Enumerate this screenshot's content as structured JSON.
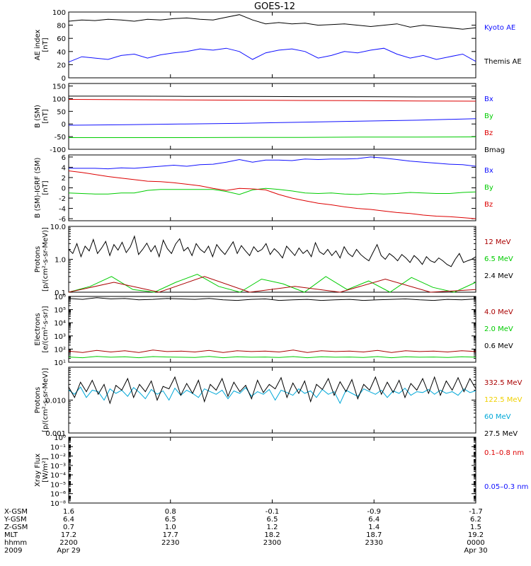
{
  "title": "GOES-12",
  "colors": {
    "black": "#000000",
    "blue": "#1010ff",
    "red": "#dd0000",
    "green": "#00cc00",
    "darkred": "#aa0000",
    "yellow": "#f0d000",
    "cyan": "#00a8d8"
  },
  "chart_data": [
    {
      "type": "line",
      "id": "ae",
      "ylabel": [
        "AE index",
        "[nT]"
      ],
      "yscale": "linear",
      "ylim": [
        0,
        100
      ],
      "yticks": [
        "0",
        "20",
        "40",
        "60",
        "80",
        "100"
      ],
      "legend": [
        {
          "label": "Kyoto AE",
          "color": "blue",
          "slot": 0
        },
        {
          "label": "Themis AE",
          "color": "black",
          "slot": 2
        }
      ],
      "series": [
        {
          "color": "black",
          "values": [
            86,
            88,
            87,
            89,
            88,
            86,
            89,
            88,
            90,
            91,
            89,
            88,
            92,
            96,
            88,
            82,
            84,
            82,
            83,
            80,
            81,
            82,
            80,
            78,
            80,
            82,
            77,
            80,
            78,
            76,
            74,
            76
          ]
        },
        {
          "color": "blue",
          "values": [
            24,
            32,
            30,
            28,
            34,
            36,
            30,
            35,
            38,
            40,
            44,
            42,
            45,
            40,
            28,
            38,
            42,
            44,
            40,
            30,
            34,
            40,
            38,
            42,
            45,
            36,
            30,
            34,
            28,
            32,
            36,
            25
          ]
        }
      ]
    },
    {
      "type": "line",
      "id": "bsm",
      "ylabel": [
        "B (SM)",
        "[nT]"
      ],
      "yscale": "linear",
      "ylim": [
        -100,
        160
      ],
      "yticks": [
        "-100",
        "-50",
        "0",
        "50",
        "100",
        "150"
      ],
      "legend": [
        {
          "label": "Bx",
          "color": "blue",
          "slot": 0
        },
        {
          "label": "By",
          "color": "green",
          "slot": 1
        },
        {
          "label": "Bz",
          "color": "red",
          "slot": 2
        },
        {
          "label": "Bmag",
          "color": "black",
          "slot": 3
        }
      ],
      "series": [
        {
          "color": "black",
          "values": [
            110,
            110,
            109,
            109,
            108,
            108,
            107,
            107
          ]
        },
        {
          "color": "red",
          "values": [
            97,
            96,
            95,
            94,
            93,
            92,
            91,
            90
          ]
        },
        {
          "color": "blue",
          "values": [
            -5,
            -3,
            0,
            3,
            7,
            11,
            15,
            21
          ]
        },
        {
          "color": "green",
          "values": [
            -54,
            -54,
            -54,
            -53,
            -53,
            -52,
            -52,
            -51
          ]
        }
      ]
    },
    {
      "type": "line",
      "id": "bsm-igrf",
      "ylabel": [
        "B (SM)-IGRF (SM)",
        "[nT]"
      ],
      "yscale": "linear",
      "ylim": [
        -6.4,
        6.4
      ],
      "yticks": [
        "-6",
        "-4",
        "-2",
        "0",
        "2",
        "4",
        "6"
      ],
      "legend": [
        {
          "label": "Bx",
          "color": "blue",
          "slot": 0
        },
        {
          "label": "By",
          "color": "green",
          "slot": 1
        },
        {
          "label": "Bz",
          "color": "red",
          "slot": 2
        }
      ],
      "series": [
        {
          "color": "blue",
          "values": [
            3.8,
            3.8,
            3.8,
            3.7,
            3.9,
            3.8,
            4.0,
            4.2,
            4.4,
            4.2,
            4.5,
            4.6,
            5.0,
            5.5,
            5.0,
            5.4,
            5.4,
            5.3,
            5.6,
            5.5,
            5.6,
            5.6,
            5.7,
            6.0,
            5.8,
            5.5,
            5.2,
            5.0,
            4.8,
            4.6,
            4.5,
            4.2
          ]
        },
        {
          "color": "green",
          "values": [
            -1.0,
            -1.1,
            -1.2,
            -1.2,
            -1.0,
            -1.0,
            -0.5,
            -0.3,
            -0.3,
            -0.3,
            -0.3,
            -0.3,
            -0.7,
            -1.3,
            -0.4,
            -0.1,
            -0.3,
            -0.6,
            -1.0,
            -1.1,
            -1.0,
            -1.2,
            -1.3,
            -1.1,
            -1.2,
            -1.1,
            -0.9,
            -1.0,
            -1.1,
            -1.1,
            -0.9,
            -0.8
          ]
        },
        {
          "color": "red",
          "values": [
            3.3,
            3.0,
            2.6,
            2.2,
            1.9,
            1.6,
            1.3,
            1.2,
            1.0,
            0.7,
            0.4,
            -0.1,
            -0.5,
            -0.1,
            -0.2,
            -0.4,
            -1.3,
            -2.0,
            -2.5,
            -3.0,
            -3.3,
            -3.7,
            -4.0,
            -4.2,
            -4.5,
            -4.8,
            -5.0,
            -5.3,
            -5.5,
            -5.6,
            -5.8,
            -6.0
          ]
        }
      ]
    },
    {
      "type": "line",
      "id": "protons-low",
      "ylabel": [
        "Protons",
        "[p/(cm²-s-sr-MeV)]"
      ],
      "yscale": "log",
      "ylim": [
        0.1,
        10
      ],
      "yticks": [
        "0.1",
        "1.0",
        "10.0"
      ],
      "legend": [
        {
          "label": "12 MeV",
          "color": "darkred",
          "slot": 0
        },
        {
          "label": "6.5 MeV",
          "color": "green",
          "slot": 1
        },
        {
          "label": "2.4 MeV",
          "color": "black",
          "slot": 2
        }
      ],
      "series": [
        {
          "color": "black",
          "values": [
            2.0,
            1.5,
            3.0,
            1.2,
            2.5,
            1.8,
            4.0,
            1.5,
            2.2,
            3.5,
            1.3,
            2.8,
            1.9,
            3.3,
            1.6,
            2.4,
            5.0,
            1.4,
            2.0,
            3.1,
            1.7,
            2.6,
            1.2,
            3.8,
            2.1,
            1.5,
            2.9,
            4.2,
            1.8,
            2.3,
            1.3,
            3.0,
            2.0,
            1.6,
            2.5,
            1.2,
            2.8,
            1.9,
            1.4,
            2.2,
            3.4,
            1.5,
            2.6,
            1.8,
            1.3,
            2.4,
            1.7,
            2.0,
            3.0,
            1.4,
            2.1,
            1.6,
            1.1,
            2.5,
            1.8,
            1.3,
            2.2,
            1.5,
            1.9,
            1.2,
            3.2,
            1.7,
            1.4,
            2.0,
            1.3,
            1.8,
            1.1,
            2.4,
            1.5,
            1.2,
            2.0,
            1.4,
            1.1,
            0.9,
            1.6,
            2.8,
            1.3,
            1.0,
            1.5,
            1.2,
            0.9,
            1.4,
            1.1,
            0.8,
            1.3,
            1.0,
            0.7,
            1.2,
            0.9,
            0.8,
            1.1,
            0.9,
            0.7,
            0.6,
            1.0,
            1.5,
            0.8,
            0.9,
            1.0,
            1.2
          ]
        },
        {
          "color": "green",
          "values": [
            0.1,
            0.15,
            0.3,
            0.12,
            0.1,
            0.2,
            0.35,
            0.15,
            0.1,
            0.25,
            0.18,
            0.1,
            0.3,
            0.12,
            0.22,
            0.1,
            0.28,
            0.14,
            0.1,
            0.2
          ]
        },
        {
          "color": "darkred",
          "values": [
            0.1,
            0.2,
            0.1,
            0.3,
            0.1,
            0.15,
            0.1,
            0.25,
            0.1,
            0.12
          ]
        }
      ]
    },
    {
      "type": "line",
      "id": "electrons",
      "ylabel": [
        "Electrons",
        "[e/(cm²-s-sr)]"
      ],
      "yscale": "log",
      "ylim": [
        10,
        1000000
      ],
      "yticks": [
        "10¹",
        "10²",
        "10³",
        "10⁴",
        "10⁵",
        "10⁶"
      ],
      "legend": [
        {
          "label": "4.0 MeV",
          "color": "darkred",
          "slot": 0
        },
        {
          "label": "2.0 MeV",
          "color": "green",
          "slot": 1
        },
        {
          "label": "0.6 MeV",
          "color": "black",
          "slot": 2
        }
      ],
      "series": [
        {
          "color": "black",
          "values": [
            700000,
            600000,
            800000,
            650000,
            700000,
            550000,
            600000,
            700000,
            650000,
            600000,
            700000,
            550000,
            500000,
            600000,
            650000,
            500000,
            550000,
            600000,
            500000,
            550000,
            600000,
            500000,
            550000,
            600000,
            650000,
            550000,
            500000,
            600000,
            550000,
            650000
          ]
        },
        {
          "color": "darkred",
          "values": [
            70,
            55,
            80,
            60,
            75,
            55,
            85,
            65,
            70,
            60,
            80,
            55,
            75,
            65,
            70,
            60,
            85,
            55,
            75,
            65,
            70,
            60,
            80,
            55,
            75,
            65,
            70,
            60,
            75,
            65
          ]
        },
        {
          "color": "green",
          "values": [
            25,
            22,
            28,
            24,
            26,
            22,
            27,
            25,
            24,
            23,
            28,
            22,
            26,
            24,
            25,
            23,
            27,
            22,
            26,
            24,
            25,
            23,
            27,
            22,
            26,
            24,
            25,
            23,
            26,
            24
          ]
        }
      ]
    },
    {
      "type": "line",
      "id": "protons-high",
      "ylabel": [
        "Protons",
        "[p/(cm²-s-sr-MeV)]"
      ],
      "yscale": "log",
      "ylim": [
        0.001,
        0.1
      ],
      "yticks": [
        "0.001",
        "0.010"
      ],
      "legend": [
        {
          "label": "332.5 MeV",
          "color": "darkred",
          "slot": 0
        },
        {
          "label": "122.5 MeV",
          "color": "yellow",
          "slot": 1
        },
        {
          "label": "60 MeV",
          "color": "cyan",
          "slot": 2
        },
        {
          "label": "27.5 MeV",
          "color": "black",
          "slot": 3
        }
      ],
      "series": [
        {
          "color": "cyan",
          "values": [
            0.02,
            0.015,
            0.025,
            0.012,
            0.02,
            0.018,
            0.01,
            0.022,
            0.016,
            0.02,
            0.013,
            0.024,
            0.017,
            0.011,
            0.021,
            0.015,
            0.019,
            0.01,
            0.023,
            0.014,
            0.02,
            0.016,
            0.012,
            0.022,
            0.018,
            0.015,
            0.02,
            0.011,
            0.019,
            0.016,
            0.024,
            0.013,
            0.018,
            0.015,
            0.021,
            0.01,
            0.02,
            0.017,
            0.014,
            0.022,
            0.016,
            0.019,
            0.012,
            0.021,
            0.015,
            0.018,
            0.008,
            0.02,
            0.016,
            0.013,
            0.022,
            0.018,
            0.015,
            0.02,
            0.012,
            0.019,
            0.016,
            0.023,
            0.014,
            0.018,
            0.017,
            0.021,
            0.015,
            0.02,
            0.016,
            0.018,
            0.014,
            0.022,
            0.017,
            0.019
          ]
        },
        {
          "color": "black",
          "values": [
            0.025,
            0.012,
            0.035,
            0.018,
            0.04,
            0.015,
            0.03,
            0.008,
            0.028,
            0.02,
            0.045,
            0.012,
            0.03,
            0.018,
            0.038,
            0.01,
            0.026,
            0.022,
            0.05,
            0.014,
            0.032,
            0.016,
            0.04,
            0.009,
            0.03,
            0.02,
            0.045,
            0.013,
            0.035,
            0.018,
            0.028,
            0.011,
            0.04,
            0.017,
            0.03,
            0.022,
            0.048,
            0.012,
            0.033,
            0.016,
            0.038,
            0.009,
            0.03,
            0.021,
            0.045,
            0.014,
            0.036,
            0.018,
            0.042,
            0.011,
            0.03,
            0.02,
            0.05,
            0.015,
            0.035,
            0.017,
            0.04,
            0.012,
            0.032,
            0.02,
            0.045,
            0.016,
            0.05,
            0.014,
            0.038,
            0.02,
            0.048,
            0.018,
            0.045,
            0.022
          ]
        }
      ]
    },
    {
      "type": "line",
      "id": "xray",
      "ylabel": [
        "Xray Flux",
        "[W/m²]"
      ],
      "yscale": "log",
      "ylim": [
        1e-09,
        1
      ],
      "yticks": [
        "10⁻⁸",
        "10⁻⁶",
        "10⁻⁵",
        "10⁻⁴",
        "10⁻³",
        "10⁻²",
        "10⁻¹",
        "10⁰"
      ],
      "legend": [
        {
          "label": "0.1–0.8 nm",
          "color": "red",
          "slot": 0
        },
        {
          "label": "0.05–0.3 nm",
          "color": "blue",
          "slot": 2
        }
      ],
      "series": []
    }
  ],
  "time_axis": {
    "row_labels": [
      "X-GSM",
      "Y-GSM",
      "Z-GSM",
      "MLT",
      "hhmm",
      "2009"
    ],
    "columns": [
      {
        "values": [
          "1.6",
          "6.4",
          "0.7",
          "17.2",
          "2200",
          "Apr 29"
        ]
      },
      {
        "values": [
          "0.8",
          "6.5",
          "1.0",
          "17.7",
          "2230",
          ""
        ]
      },
      {
        "values": [
          "-0.1",
          "6.5",
          "1.2",
          "18.2",
          "2300",
          ""
        ]
      },
      {
        "values": [
          "-0.9",
          "6.4",
          "1.4",
          "18.7",
          "2330",
          ""
        ]
      },
      {
        "values": [
          "-1.7",
          "6.2",
          "1.5",
          "19.2",
          "0000",
          "Apr 30"
        ]
      }
    ]
  }
}
